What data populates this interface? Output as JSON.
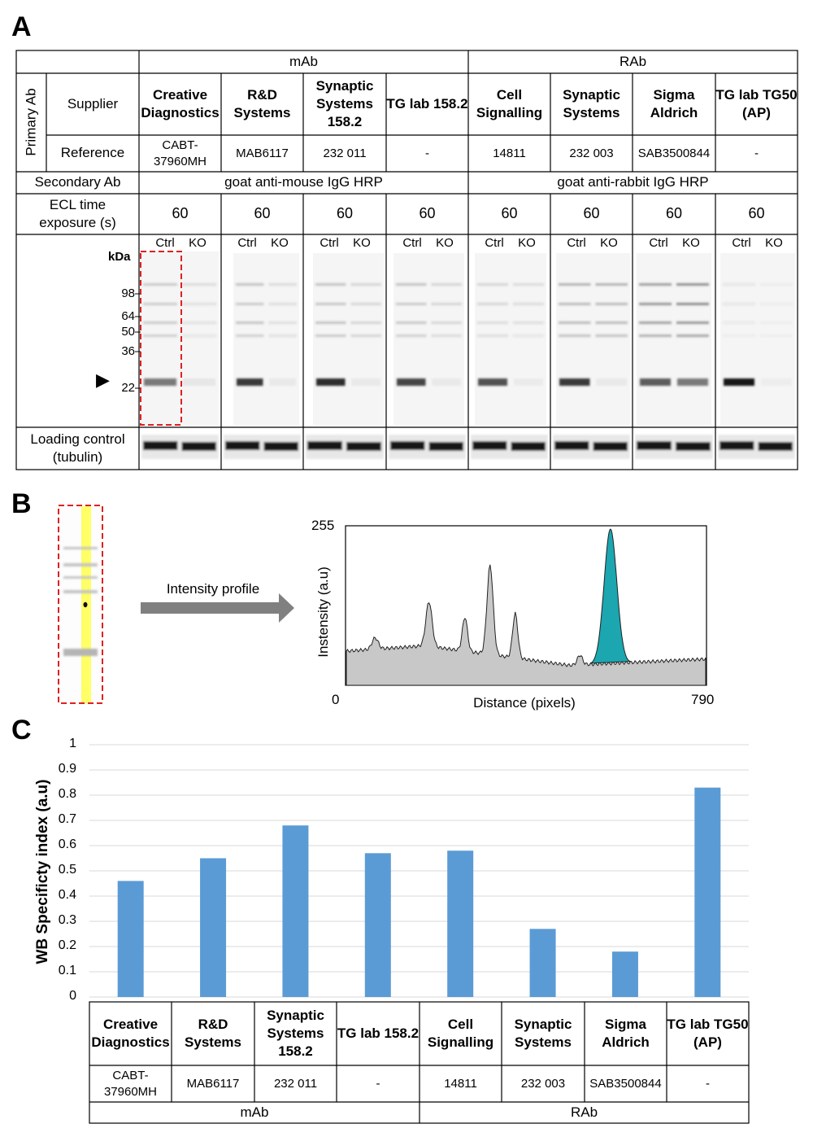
{
  "panels": {
    "a": "A",
    "b": "B",
    "c": "C"
  },
  "table_a": {
    "group_mab": "mAb",
    "group_rab": "RAb",
    "primary_ab": "Primary Ab",
    "supplier_label": "Supplier",
    "reference_label": "Reference",
    "secondary_label": "Secondary Ab",
    "secondary_mab": "goat anti-mouse IgG HRP",
    "secondary_rab": "goat anti-rabbit IgG HRP",
    "ecl_label": "ECL time exposure (s)",
    "loading_label": "Loading control (tubulin)",
    "kda": "kDa",
    "arrow_glyph": "▶",
    "markers": [
      {
        "label": "98"
      },
      {
        "label": "64"
      },
      {
        "label": "50"
      },
      {
        "label": "36"
      },
      {
        "label": "22"
      }
    ],
    "columns": [
      {
        "supplier": "Creative Diagnostics",
        "reference": "CABT-37960MH",
        "ecl": "60",
        "ctrl": "Ctrl",
        "ko": "KO"
      },
      {
        "supplier": "R&D Systems",
        "reference": "MAB6117",
        "ecl": "60",
        "ctrl": "Ctrl",
        "ko": "KO"
      },
      {
        "supplier": "Synaptic Systems 158.2",
        "reference": "232 011",
        "ecl": "60",
        "ctrl": "Ctrl",
        "ko": "KO"
      },
      {
        "supplier": "TG lab 158.2",
        "reference": "-",
        "ecl": "60",
        "ctrl": "Ctrl",
        "ko": "KO"
      },
      {
        "supplier": "Cell Signalling",
        "reference": "14811",
        "ecl": "60",
        "ctrl": "Ctrl",
        "ko": "KO"
      },
      {
        "supplier": "Synaptic Systems",
        "reference": "232 003",
        "ecl": "60",
        "ctrl": "Ctrl",
        "ko": "KO"
      },
      {
        "supplier": "Sigma Aldrich",
        "reference": "SAB3500844",
        "ecl": "60",
        "ctrl": "Ctrl",
        "ko": "KO"
      },
      {
        "supplier": "TG lab TG50 (AP)",
        "reference": "-",
        "ecl": "60",
        "ctrl": "Ctrl",
        "ko": "KO"
      }
    ]
  },
  "panel_b": {
    "arrow_label": "Intensity profile",
    "y_label": "Instensity (a.u)",
    "x_label": "Distance (pixels)",
    "y_max": "255",
    "x_min": "0",
    "x_max": "790",
    "colors": {
      "peak": "#1ba6b0",
      "profile": "#c8c8c8",
      "lane_highlight": "#ffff66",
      "box": "#e02020"
    }
  },
  "chart_data": {
    "type": "bar",
    "ylabel": "WB Specificty index (a.u)",
    "ylim": [
      0,
      1
    ],
    "yticks": [
      "0",
      "0.1",
      "0.2",
      "0.3",
      "0.4",
      "0.5",
      "0.6",
      "0.7",
      "0.8",
      "0.9",
      "1"
    ],
    "categories": [
      "Creative Diagnostics",
      "R&D Systems",
      "Synaptic Systems 158.2",
      "TG lab 158.2",
      "Cell Signalling",
      "Synaptic Systems",
      "Sigma Aldrich",
      "TG lab TG50 (AP)"
    ],
    "references": [
      "CABT-37960MH",
      "MAB6117",
      "232 011",
      "-",
      "14811",
      "232 003",
      "SAB3500844",
      "-"
    ],
    "values": [
      0.46,
      0.55,
      0.68,
      0.57,
      0.58,
      0.27,
      0.18,
      0.83
    ],
    "groups": [
      "mAb",
      "RAb"
    ],
    "bar_color": "#5b9bd5",
    "grid": true
  }
}
